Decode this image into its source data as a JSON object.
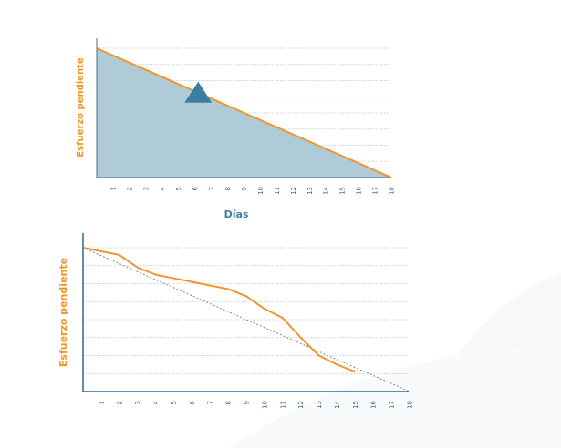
{
  "chart_data": [
    {
      "type": "area",
      "xlabel": "Días",
      "ylabel": "Esfuerzo pendiente",
      "x_ticks": [
        "1",
        "2",
        "3",
        "4",
        "5",
        "6",
        "7",
        "8",
        "9",
        "10",
        "11",
        "12",
        "13",
        "14",
        "15",
        "16",
        "17",
        "18"
      ],
      "xlim": [
        0,
        18
      ],
      "ylim": [
        0,
        8
      ],
      "grid": "horizontal-dotted",
      "series": [
        {
          "x": [
            0,
            18
          ],
          "values": [
            8,
            0
          ]
        }
      ],
      "marker": {
        "shape": "triangle",
        "x": 6.2,
        "y": 5.2
      },
      "colors": {
        "fill": "#afcbd7",
        "line": "#f0962a",
        "marker": "#3b7fa0"
      }
    },
    {
      "type": "line",
      "xlabel": "",
      "ylabel": "Esfuerzo pendiente",
      "x_ticks": [
        "1",
        "2",
        "3",
        "4",
        "5",
        "6",
        "7",
        "8",
        "9",
        "10",
        "11",
        "12",
        "13",
        "14",
        "15",
        "16",
        "17",
        "18"
      ],
      "xlim": [
        0,
        18
      ],
      "ylim": [
        0,
        8
      ],
      "grid": "horizontal-dotted",
      "series": [
        {
          "x": [
            0,
            2,
            3,
            4,
            5,
            6,
            7,
            8,
            9,
            10,
            11,
            12,
            13,
            14,
            15
          ],
          "values": [
            8,
            7.6,
            6.9,
            6.5,
            6.3,
            6.1,
            5.9,
            5.7,
            5.3,
            4.6,
            4.1,
            3.0,
            2.0,
            1.5,
            1.1
          ]
        },
        {
          "x": [
            0,
            18
          ],
          "values": [
            8,
            0
          ]
        }
      ],
      "colors": {
        "actual": "#f0962a",
        "ideal": "#888888",
        "axis": "#2e6a8a"
      }
    }
  ]
}
